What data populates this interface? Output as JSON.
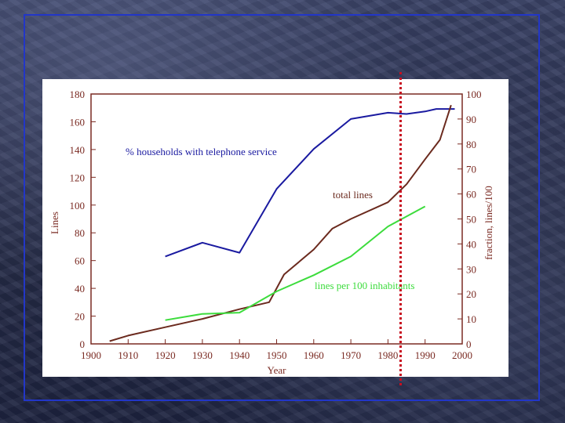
{
  "chart_data": {
    "type": "line",
    "xlabel": "Year",
    "ylabel_left": "Lines",
    "ylabel_right": "fraction, lines/100",
    "xlim": [
      1900,
      2000
    ],
    "ylim_left": [
      0,
      180
    ],
    "ylim_right": [
      0,
      100
    ],
    "x_ticks": [
      "1900",
      "1910",
      "1920",
      "1930",
      "1940",
      "1950",
      "1960",
      "1970",
      "1980",
      "1990",
      "2000"
    ],
    "y_left_ticks": [
      "0",
      "20",
      "40",
      "60",
      "80",
      "100",
      "120",
      "140",
      "160",
      "180"
    ],
    "y_right_ticks": [
      "0",
      "10",
      "20",
      "30",
      "40",
      "50",
      "60",
      "70",
      "80",
      "90",
      "100"
    ],
    "grid": false,
    "series": [
      {
        "name": "% households with telephone service",
        "axis": "right",
        "color": "#1a1aa0",
        "points": [
          [
            1920,
            35
          ],
          [
            1930,
            40.5
          ],
          [
            1940,
            36.5
          ],
          [
            1950,
            62
          ],
          [
            1960,
            78
          ],
          [
            1970,
            90
          ],
          [
            1980,
            92.5
          ],
          [
            1985,
            92
          ],
          [
            1990,
            93
          ],
          [
            1993,
            94
          ],
          [
            1998,
            94
          ]
        ]
      },
      {
        "name": "total lines",
        "axis": "left",
        "color": "#6b2a1e",
        "points": [
          [
            1905,
            2
          ],
          [
            1910,
            6
          ],
          [
            1920,
            12
          ],
          [
            1930,
            18
          ],
          [
            1940,
            25
          ],
          [
            1948,
            30
          ],
          [
            1952,
            50
          ],
          [
            1960,
            68
          ],
          [
            1965,
            83
          ],
          [
            1970,
            90
          ],
          [
            1980,
            102
          ],
          [
            1985,
            115
          ],
          [
            1990,
            133
          ],
          [
            1994,
            147
          ],
          [
            1997,
            172
          ]
        ]
      },
      {
        "name": "lines per 100 inhabitants",
        "axis": "right",
        "color": "#3cdc3c",
        "points": [
          [
            1920,
            9.5
          ],
          [
            1930,
            12
          ],
          [
            1940,
            12.5
          ],
          [
            1950,
            21
          ],
          [
            1960,
            27.5
          ],
          [
            1970,
            35
          ],
          [
            1980,
            47
          ],
          [
            1990,
            55
          ]
        ]
      }
    ],
    "annotation_x": 1984
  },
  "colors": {
    "axis": "#7a2a22",
    "frame": "#2236c8",
    "marker": "#c81020"
  }
}
